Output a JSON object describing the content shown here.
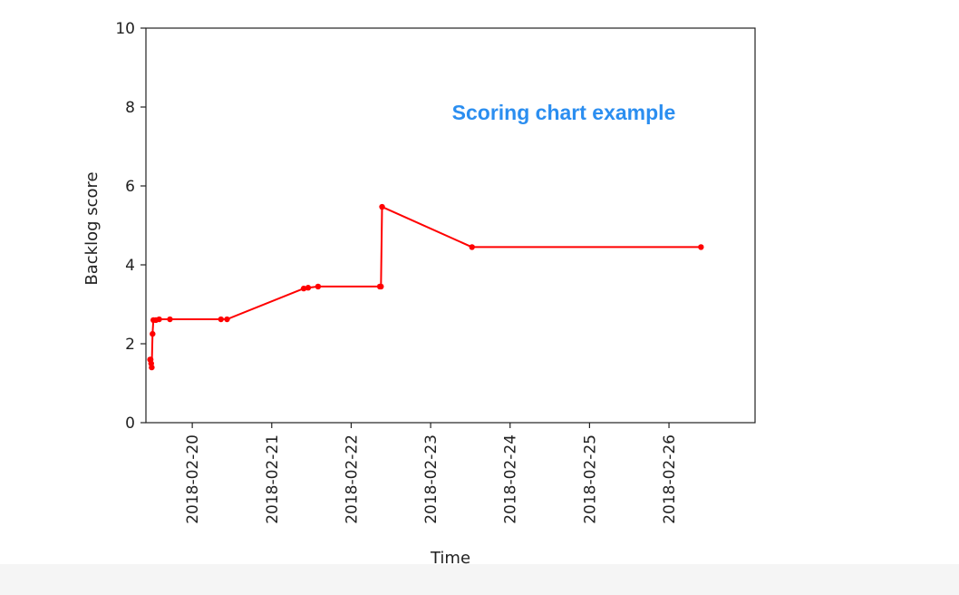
{
  "chart_data": {
    "type": "line",
    "overlay_text": "Scoring chart example",
    "xlabel": "Time",
    "ylabel": "Backlog score",
    "xlim": [
      "2018-02-19T10:00",
      "2018-02-27T02:00"
    ],
    "ylim": [
      0,
      10
    ],
    "x_ticks": [
      "2018-02-20",
      "2018-02-21",
      "2018-02-22",
      "2018-02-23",
      "2018-02-24",
      "2018-02-25",
      "2018-02-26"
    ],
    "y_ticks": [
      0,
      2,
      4,
      6,
      8,
      10
    ],
    "grid": false,
    "series": [
      {
        "color": "#ff0000",
        "marker": "dot",
        "points": [
          {
            "x": "2018-02-19T11:15",
            "y": 1.6
          },
          {
            "x": "2018-02-19T11:25",
            "y": 1.6
          },
          {
            "x": "2018-02-19T11:35",
            "y": 1.5
          },
          {
            "x": "2018-02-19T11:45",
            "y": 1.4
          },
          {
            "x": "2018-02-19T12:00",
            "y": 2.25
          },
          {
            "x": "2018-02-19T12:15",
            "y": 2.6
          },
          {
            "x": "2018-02-19T13:00",
            "y": 2.6
          },
          {
            "x": "2018-02-19T14:00",
            "y": 2.62
          },
          {
            "x": "2018-02-19T17:15",
            "y": 2.62
          },
          {
            "x": "2018-02-20T08:40",
            "y": 2.62
          },
          {
            "x": "2018-02-20T10:30",
            "y": 2.62
          },
          {
            "x": "2018-02-21T09:40",
            "y": 3.4
          },
          {
            "x": "2018-02-21T11:00",
            "y": 3.42
          },
          {
            "x": "2018-02-21T14:00",
            "y": 3.45
          },
          {
            "x": "2018-02-22T08:40",
            "y": 3.45
          },
          {
            "x": "2018-02-22T09:00",
            "y": 3.45
          },
          {
            "x": "2018-02-22T09:20",
            "y": 5.47
          },
          {
            "x": "2018-02-23T12:30",
            "y": 4.45
          },
          {
            "x": "2018-02-26T09:40",
            "y": 4.45
          }
        ]
      }
    ]
  }
}
